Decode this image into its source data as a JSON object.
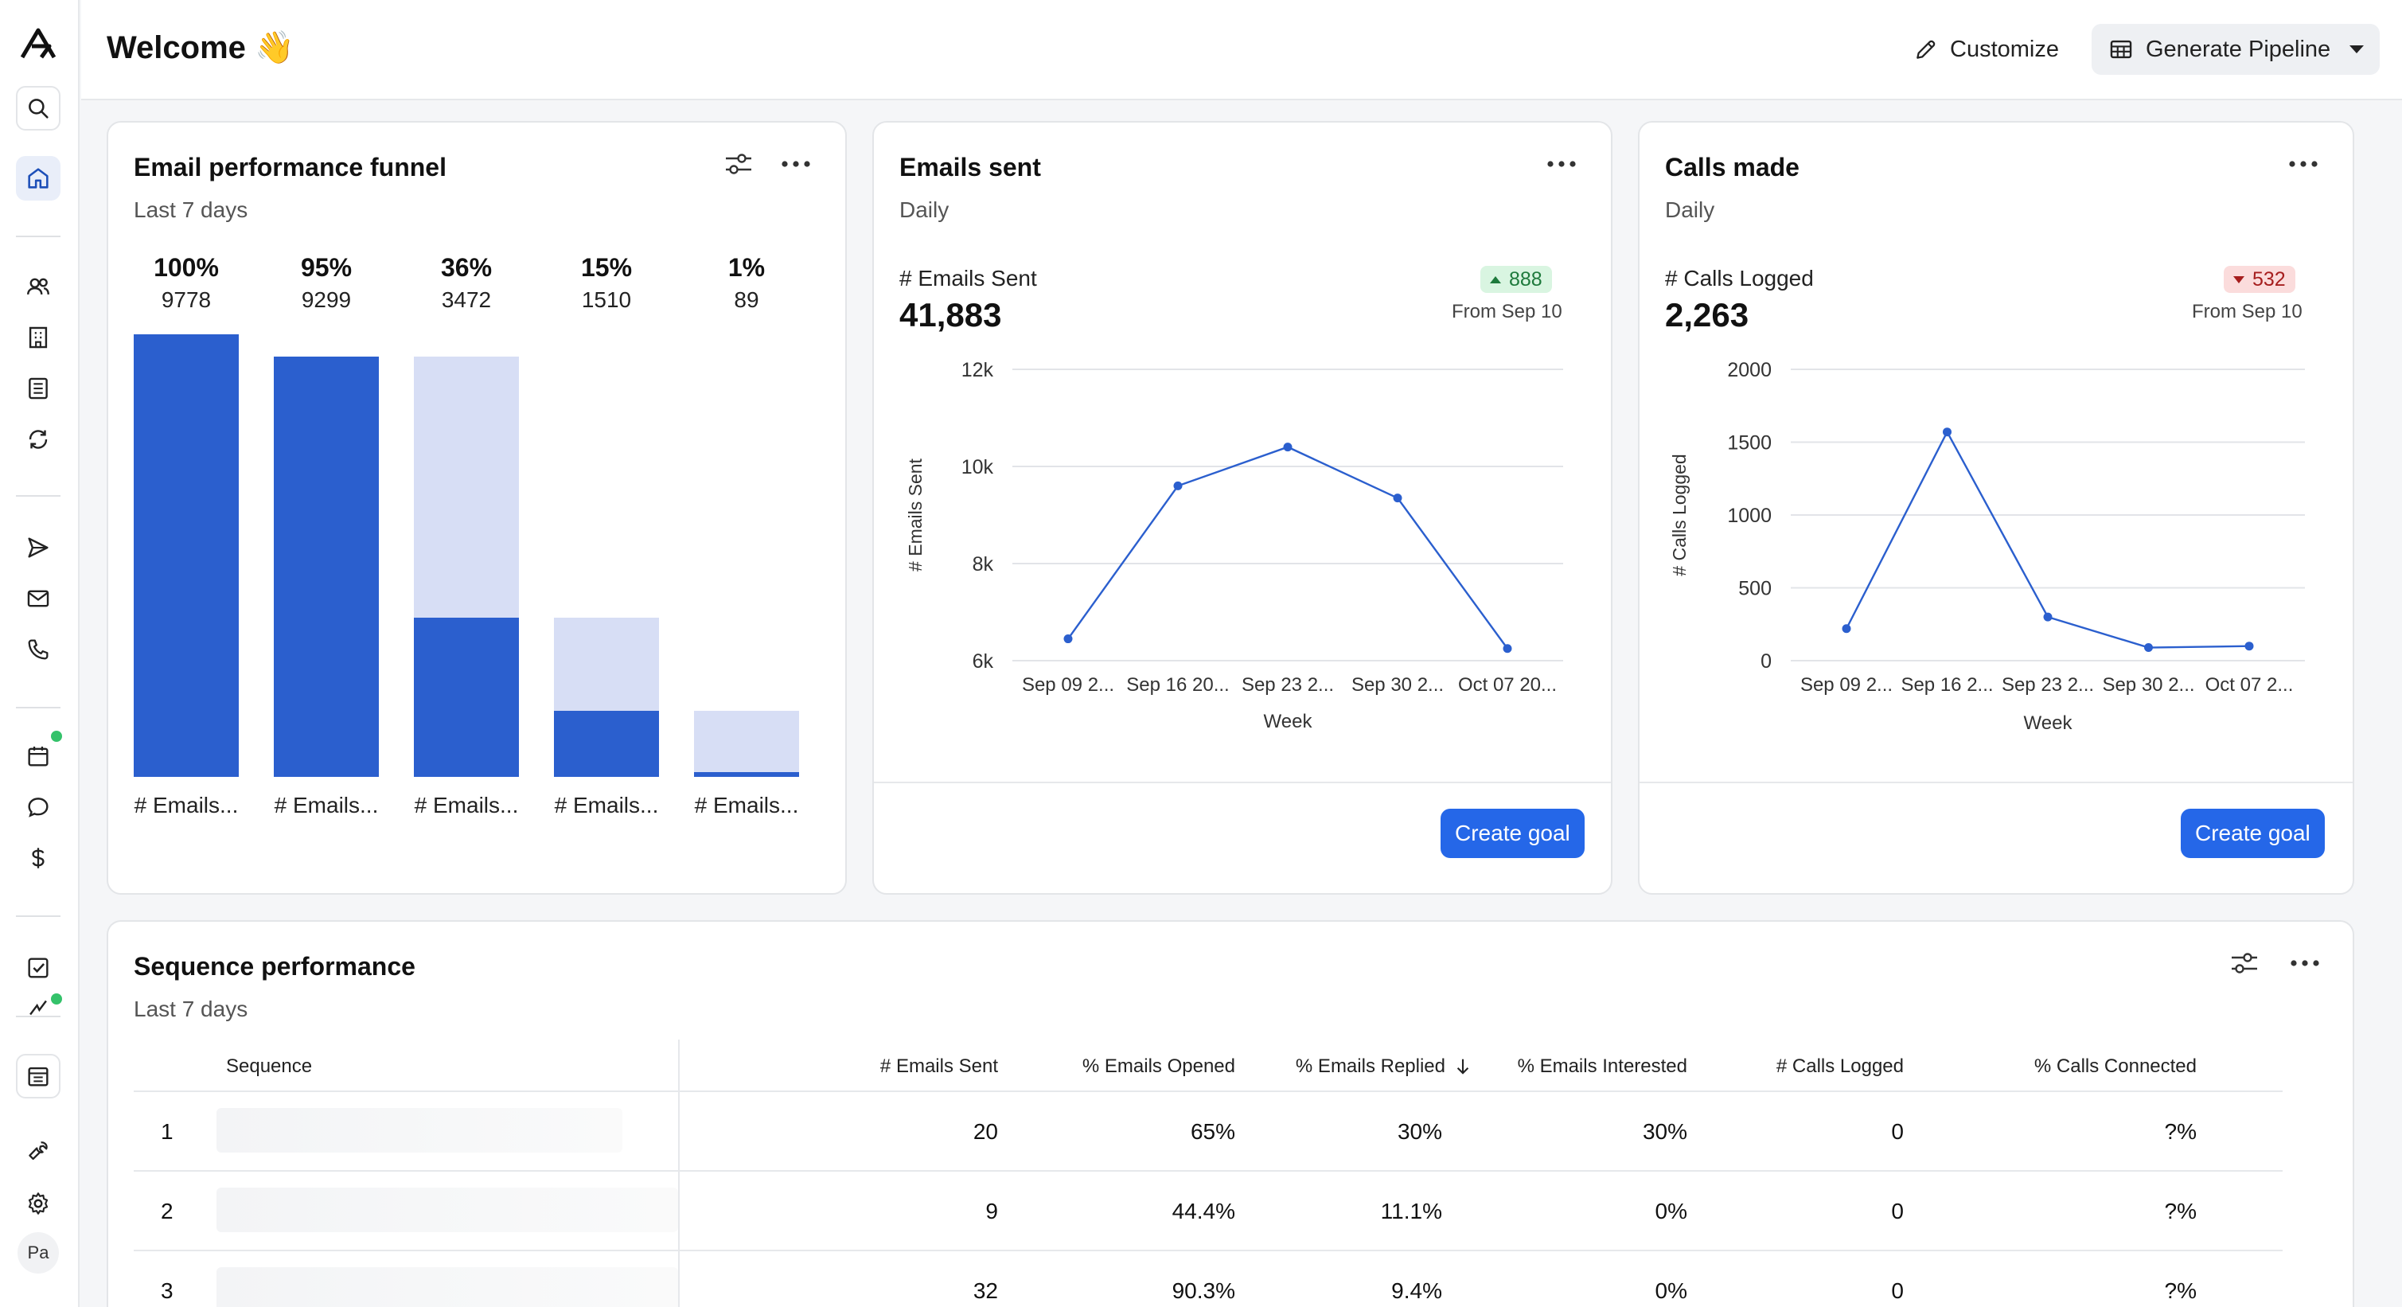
{
  "header": {
    "title": "Welcome 👋",
    "customize_label": "Customize",
    "pipeline_label": "Generate Pipeline"
  },
  "sidebar": {
    "items": [
      "search",
      "home",
      "people",
      "companies",
      "lists",
      "sync",
      "sequences",
      "emails",
      "calls",
      "meetings",
      "conversations",
      "deals",
      "tasks",
      "analytics",
      "reports",
      "tools",
      "settings"
    ],
    "avatar": "Pa",
    "accent": "#34c26a"
  },
  "funnel": {
    "title": "Email performance funnel",
    "subtitle": "Last 7 days",
    "stages": [
      {
        "pct": "100%",
        "count": "9778",
        "label": "# Emails...",
        "total_frac": 1.0,
        "dark_frac": 1.0
      },
      {
        "pct": "95%",
        "count": "9299",
        "label": "# Emails...",
        "total_frac": 0.95,
        "dark_frac": 0.95
      },
      {
        "pct": "36%",
        "count": "3472",
        "label": "# Emails...",
        "total_frac": 0.95,
        "dark_frac": 0.36
      },
      {
        "pct": "15%",
        "count": "1510",
        "label": "# Emails...",
        "total_frac": 0.36,
        "dark_frac": 0.15
      },
      {
        "pct": "1%",
        "count": "89",
        "label": "# Emails...",
        "total_frac": 0.15,
        "dark_frac": 0.01
      }
    ],
    "colors": {
      "dark": "#2b5fce",
      "light": "#d7def5"
    }
  },
  "emails_card": {
    "title": "Emails sent",
    "subtitle": "Daily",
    "metric_label": "# Emails Sent",
    "metric_value": "41,883",
    "delta": "888",
    "delta_dir": "up",
    "from_text": "From Sep 10",
    "button": "Create goal"
  },
  "calls_card": {
    "title": "Calls made",
    "subtitle": "Daily",
    "metric_label": "# Calls Logged",
    "metric_value": "2,263",
    "delta": "532",
    "delta_dir": "down",
    "from_text": "From Sep 10",
    "button": "Create goal"
  },
  "chart_data": [
    {
      "type": "line",
      "x": [
        "Sep 09 2...",
        "Sep 16 20...",
        "Sep 23 2...",
        "Sep 30 2...",
        "Oct 07 20..."
      ],
      "series": [
        {
          "values": [
            6450,
            9600,
            10400,
            9350,
            6250
          ]
        }
      ],
      "xlabel": "Week",
      "ylabel": "# Emails Sent",
      "yticks": [
        "6k",
        "8k",
        "10k",
        "12k"
      ],
      "ylim": [
        6000,
        12000
      ],
      "color": "#2b5fce"
    },
    {
      "type": "line",
      "x": [
        "Sep 09 2...",
        "Sep 16 2...",
        "Sep 23 2...",
        "Sep 30 2...",
        "Oct 07 2..."
      ],
      "series": [
        {
          "values": [
            220,
            1570,
            300,
            90,
            100
          ]
        }
      ],
      "xlabel": "Week",
      "ylabel": "# Calls Logged",
      "yticks": [
        "0",
        "500",
        "1000",
        "1500",
        "2000"
      ],
      "ylim": [
        0,
        2000
      ],
      "color": "#2b5fce"
    }
  ],
  "sequence": {
    "title": "Sequence performance",
    "subtitle": "Last 7 days",
    "columns": [
      "Sequence",
      "# Emails Sent",
      "% Emails Opened",
      "% Emails Replied",
      "% Emails Interested",
      "# Calls Logged",
      "% Calls Connected"
    ],
    "rows": [
      {
        "idx": "1",
        "emails_sent": "20",
        "opened": "65%",
        "replied": "30%",
        "interested": "30%",
        "calls": "0",
        "connected": "?%"
      },
      {
        "idx": "2",
        "emails_sent": "9",
        "opened": "44.4%",
        "replied": "11.1%",
        "interested": "0%",
        "calls": "0",
        "connected": "?%"
      },
      {
        "idx": "3",
        "emails_sent": "32",
        "opened": "90.3%",
        "replied": "9.4%",
        "interested": "0%",
        "calls": "0",
        "connected": "?%"
      }
    ]
  }
}
